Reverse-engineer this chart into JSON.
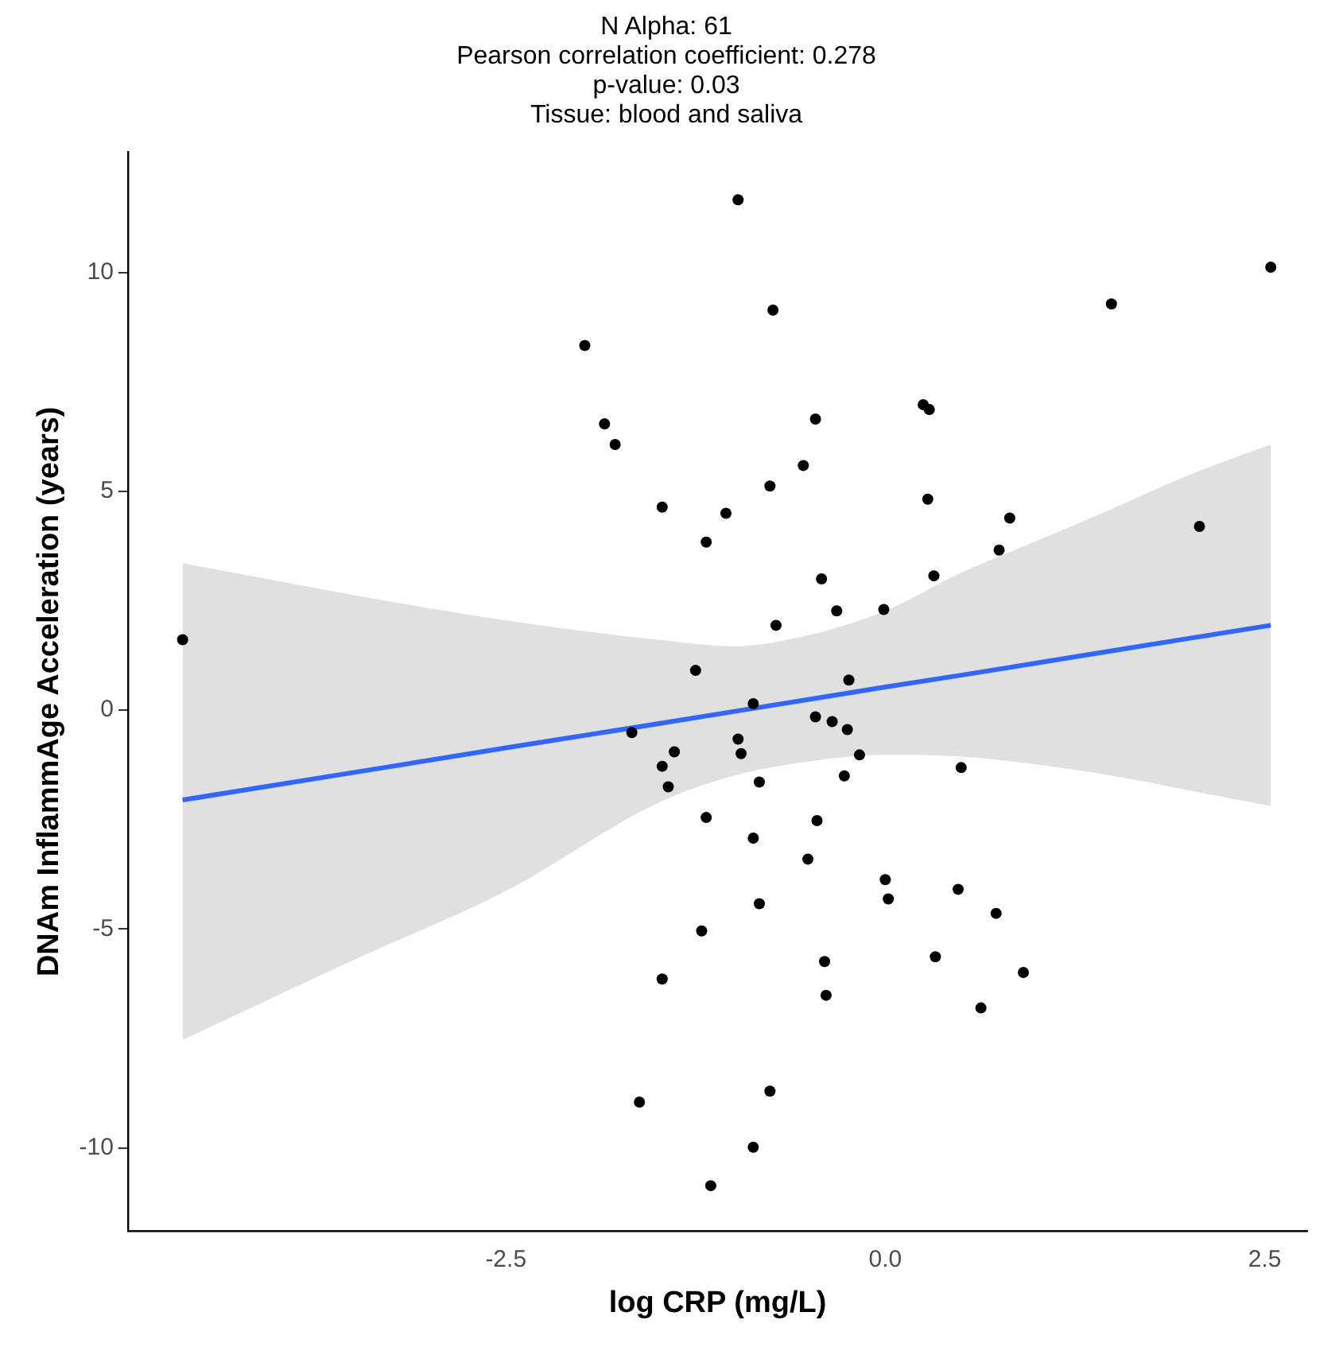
{
  "chart_data": {
    "type": "scatter",
    "title": "N Alpha: 61\nPearson correlation coefficient: 0.278\np-value: 0.03\nTissue: blood and saliva",
    "xlabel": "log CRP (mg/L)",
    "ylabel": "DNAm InflammAge Acceleration (years)",
    "xlim": [
      -4.99,
      2.78
    ],
    "xticks": [
      -2.5,
      {
        "value": 0,
        "label": "0.0"
      },
      2.5
    ],
    "ylim": [
      -11.9,
      12.75
    ],
    "yticks": [
      -10,
      -5,
      0,
      5,
      10
    ],
    "grid": false,
    "legend": false,
    "marker": "circle",
    "series": [
      {
        "color": "#000000",
        "x": [
          -4.63,
          -1.98,
          -1.85,
          -1.78,
          -1.47,
          -1.25,
          -0.97,
          -0.74,
          1.49,
          2.54,
          0.25,
          0.29,
          -0.46,
          -0.54,
          -0.76,
          -1.05,
          -1.18,
          0.28,
          0.82,
          0.75,
          2.07,
          0.32,
          -0.42,
          -0.32,
          -0.01,
          -0.72,
          -0.24,
          -1.67,
          -1.39,
          -1.47,
          -1.43,
          -1.18,
          -1.21,
          -1.47,
          -1.62,
          -1.15,
          -0.87,
          -0.46,
          -0.35,
          -0.25,
          -0.97,
          -0.95,
          -0.17,
          -0.27,
          0.5,
          -0.83,
          -0.45,
          -0.87,
          -0.51,
          0.0,
          0.02,
          0.48,
          0.73,
          -0.83,
          -0.4,
          0.33,
          0.91,
          -0.39,
          0.63,
          -0.76,
          -0.87
        ],
        "values": [
          1.61,
          8.33,
          6.54,
          6.07,
          4.64,
          0.91,
          11.66,
          9.14,
          9.28,
          10.12,
          6.98,
          6.87,
          6.65,
          5.59,
          5.12,
          4.5,
          3.84,
          4.82,
          4.39,
          3.66,
          4.2,
          3.07,
          3.0,
          2.27,
          2.3,
          1.94,
          0.69,
          -0.51,
          -0.95,
          -1.28,
          -1.75,
          -2.45,
          -5.04,
          -6.14,
          -8.95,
          -10.86,
          0.15,
          -0.15,
          -0.26,
          -0.44,
          -0.66,
          -0.99,
          -1.02,
          -1.5,
          -1.31,
          -1.64,
          -2.52,
          -2.92,
          -3.4,
          -3.87,
          -4.31,
          -4.09,
          -4.64,
          -4.42,
          -5.74,
          -5.63,
          -5.99,
          -6.51,
          -6.8,
          -8.7,
          -9.98
        ]
      },
      {
        "type": "line",
        "color": "#3366ff",
        "marker": "none",
        "x": [
          -4.63,
          -3.5,
          -2.5,
          -1.5,
          -1,
          -0.5,
          0,
          0.5,
          1,
          1.5,
          2,
          2.54
        ],
        "values": [
          -2.05,
          -1.42,
          -0.86,
          -0.31,
          -0.03,
          0.25,
          0.53,
          0.8,
          1.08,
          1.36,
          1.64,
          1.94
        ],
        "lower": [
          -7.53,
          -5.7,
          -4.13,
          -2.12,
          -1.5,
          -1.17,
          -1.02,
          -1.06,
          -1.24,
          -1.5,
          -1.83,
          -2.19
        ],
        "upper": [
          3.36,
          2.63,
          2.05,
          1.61,
          1.46,
          1.72,
          2.27,
          3.14,
          3.87,
          4.61,
          5.37,
          6.07
        ]
      }
    ]
  }
}
